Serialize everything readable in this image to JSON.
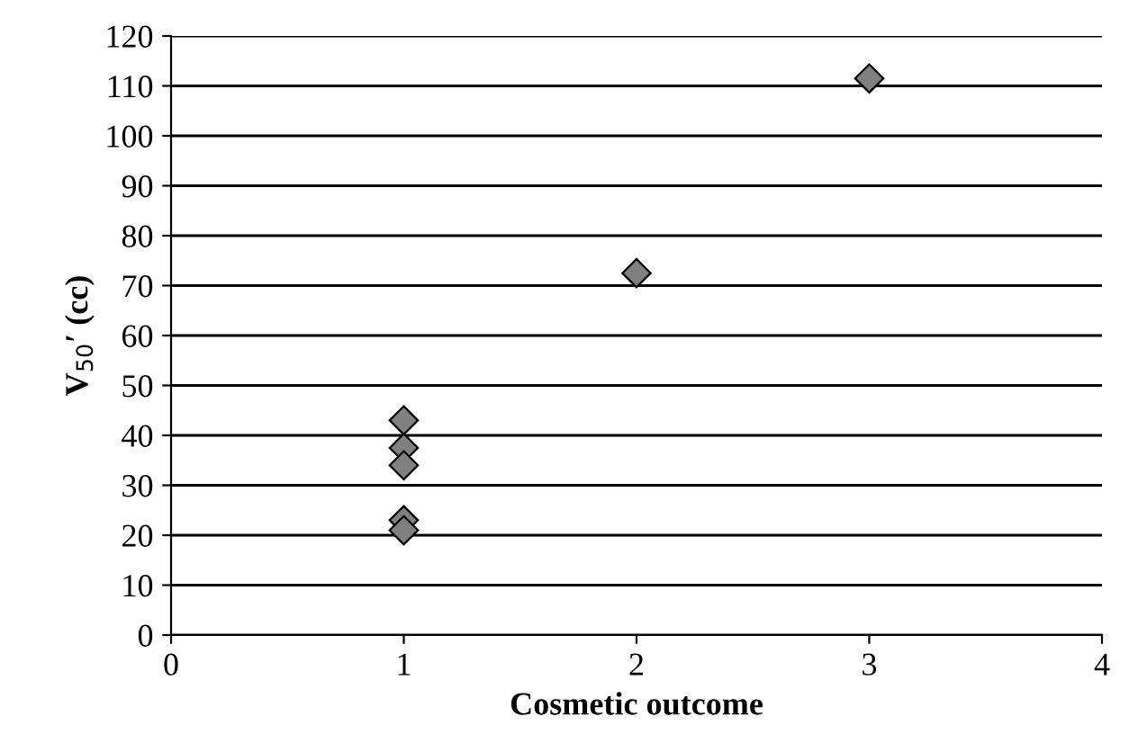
{
  "chart_data": {
    "type": "scatter",
    "xlabel": "Cosmetic outcome",
    "ylabel": "V$_{50}$′ (cc)",
    "x": [
      1,
      1,
      1,
      1,
      1,
      2,
      3
    ],
    "series": [
      {
        "color": "#808080",
        "values": [
          43,
          37.5,
          34,
          23,
          21,
          72.5,
          111.5
        ]
      }
    ],
    "xlim": [
      0,
      4
    ],
    "xticks": [
      0,
      1,
      2,
      3,
      4
    ],
    "ylim": [
      0,
      120
    ],
    "yticks": [
      0,
      10,
      20,
      30,
      40,
      50,
      60,
      70,
      80,
      90,
      100,
      110,
      120
    ],
    "grid": "y",
    "marker": "diamond"
  }
}
